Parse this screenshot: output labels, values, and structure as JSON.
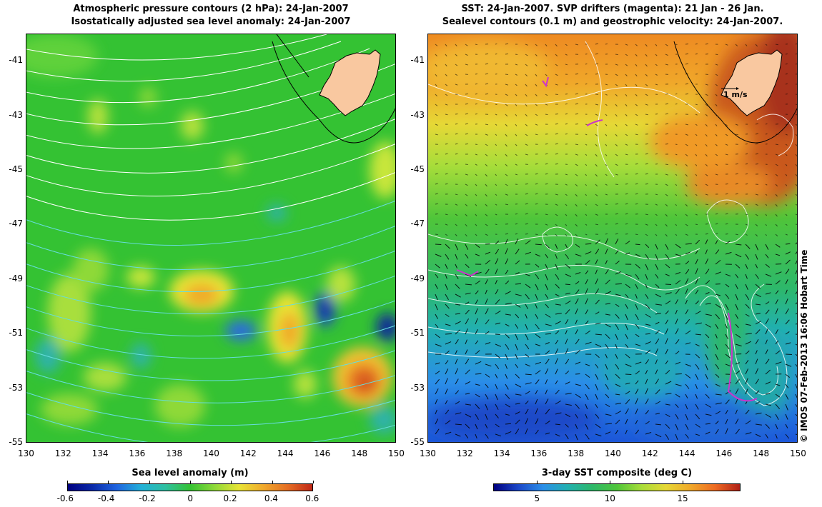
{
  "left_panel": {
    "title_line1": "Atmospheric pressure contours (2 hPa): 24-Jan-2007",
    "title_line2": "Isostatically adjusted sea level anomaly: 24-Jan-2007",
    "colorbar_title": "Sea level anomaly (m)",
    "colorbar_ticks": [
      "-0.6",
      "-0.4",
      "-0.2",
      "0",
      "0.2",
      "0.4",
      "0.6"
    ],
    "colorbar_range": [
      -0.6,
      0.6
    ]
  },
  "right_panel": {
    "title_line1": "SST: 24-Jan-2007. SVP drifters (magenta): 21 Jan - 26 Jan.",
    "title_line2": "Sealevel contours (0.1 m) and geostrophic velocity: 24-Jan-2007.",
    "colorbar_title": "3-day SST composite (deg C)",
    "colorbar_ticks": [
      "5",
      "10",
      "15"
    ],
    "colorbar_range": [
      2,
      19
    ],
    "velocity_scale_label": "1 m/s"
  },
  "axes": {
    "x_ticks": [
      "130",
      "132",
      "134",
      "136",
      "138",
      "140",
      "142",
      "144",
      "146",
      "148",
      "150"
    ],
    "y_ticks": [
      "-41",
      "-43",
      "-45",
      "-47",
      "-49",
      "-51",
      "-53",
      "-55"
    ],
    "lon_range": [
      130,
      150
    ],
    "lat_range": [
      -40,
      -55
    ]
  },
  "credit": "© IMOS 07-Feb-2013 16:06 Hobart Time",
  "colors": {
    "land": "#f9c8a0",
    "ocean_mid": "#34c233",
    "pressure_contours_white": "#ffffff",
    "pressure_contours_cyan": "#66dddd",
    "drifters": "#cc33cc"
  }
}
